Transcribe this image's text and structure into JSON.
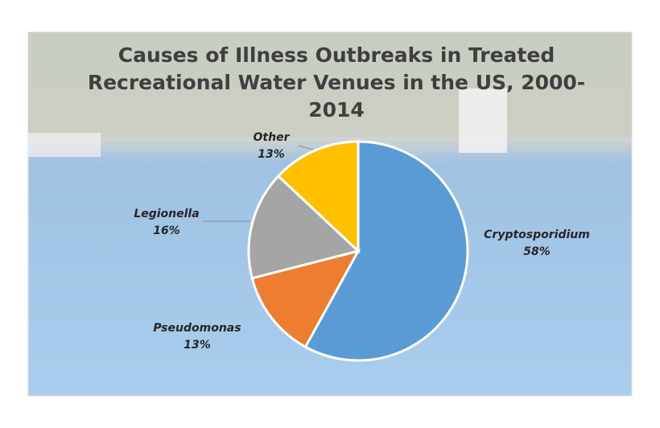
{
  "chart_data": {
    "type": "pie",
    "title": "Causes of Illness Outbreaks in Treated Recreational Water Venues in the US, 2000-2014",
    "categories": [
      "Cryptosporidium",
      "Pseudomonas",
      "Legionella",
      "Other"
    ],
    "values": [
      58,
      13,
      16,
      13
    ],
    "value_labels": [
      "58%",
      "13%",
      "16%",
      "13%"
    ],
    "colors": [
      "#5b9bd5",
      "#ed7d31",
      "#a5a5a5",
      "#ffc000"
    ]
  }
}
